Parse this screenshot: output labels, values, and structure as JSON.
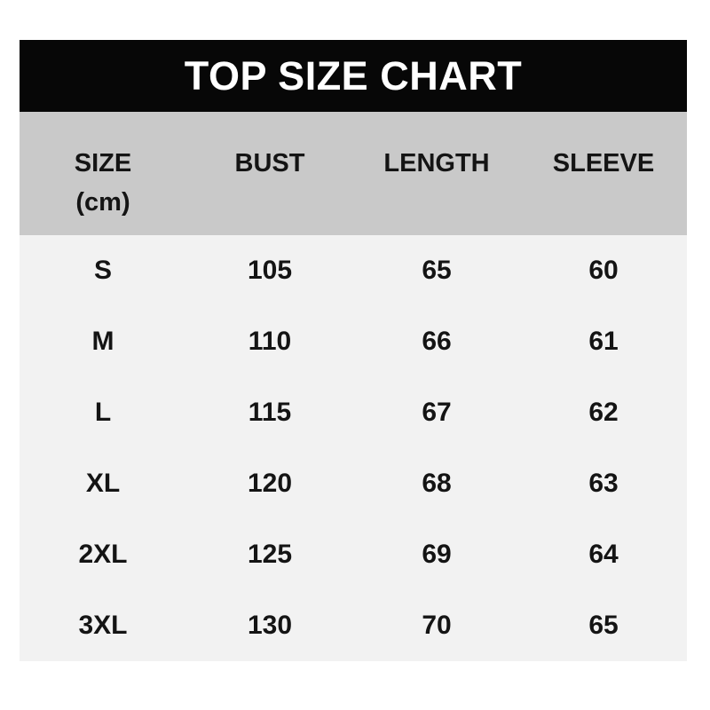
{
  "title": "TOP SIZE CHART",
  "colors": {
    "page_bg": "#ffffff",
    "title_bar_bg": "#070707",
    "title_text": "#ffffff",
    "header_band_bg": "#c9c9c9",
    "body_bg": "#f2f2f2",
    "text": "#141414"
  },
  "table": {
    "headers": [
      {
        "label": "SIZE",
        "sub": "(cm)"
      },
      {
        "label": "BUST"
      },
      {
        "label": "LENGTH"
      },
      {
        "label": "SLEEVE"
      }
    ],
    "rows": [
      {
        "cells": [
          "S",
          "105",
          "65",
          "60"
        ]
      },
      {
        "cells": [
          "M",
          "110",
          "66",
          "61"
        ]
      },
      {
        "cells": [
          "L",
          "115",
          "67",
          "62"
        ]
      },
      {
        "cells": [
          "XL",
          "120",
          "68",
          "63"
        ]
      },
      {
        "cells": [
          "2XL",
          "125",
          "69",
          "64"
        ]
      },
      {
        "cells": [
          "3XL",
          "130",
          "70",
          "65"
        ]
      }
    ]
  },
  "chart_data": {
    "type": "table",
    "title": "TOP SIZE CHART",
    "unit": "cm",
    "columns": [
      "SIZE (cm)",
      "BUST",
      "LENGTH",
      "SLEEVE"
    ],
    "rows": [
      [
        "S",
        105,
        65,
        60
      ],
      [
        "M",
        110,
        66,
        61
      ],
      [
        "L",
        115,
        67,
        62
      ],
      [
        "XL",
        120,
        68,
        63
      ],
      [
        "2XL",
        125,
        69,
        64
      ],
      [
        "3XL",
        130,
        70,
        65
      ]
    ]
  }
}
